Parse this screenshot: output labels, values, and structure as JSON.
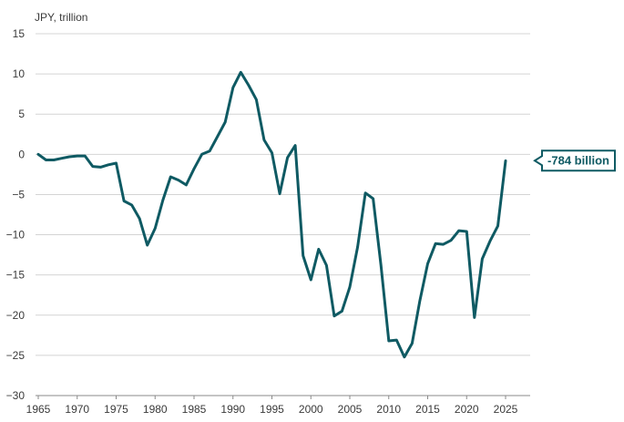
{
  "chart_data": {
    "type": "line",
    "title": "",
    "ylabel": "JPY, trillion",
    "xlabel": "",
    "xlim": [
      1965,
      2028
    ],
    "ylim": [
      -30,
      15
    ],
    "xticks": [
      1965,
      1970,
      1975,
      1980,
      1985,
      1990,
      1995,
      2000,
      2005,
      2010,
      2015,
      2020,
      2025
    ],
    "yticks": [
      15,
      10,
      5,
      0,
      -5,
      -10,
      -15,
      -20,
      -25,
      -30
    ],
    "grid": "horizontal",
    "colors": {
      "line": "#0f5a63",
      "grid": "#d4d4d4"
    },
    "series": [
      {
        "x": [
          1965,
          1966,
          1967,
          1968,
          1969,
          1970,
          1971,
          1972,
          1973,
          1974,
          1975,
          1976,
          1977,
          1978,
          1979,
          1980,
          1981,
          1982,
          1983,
          1984,
          1985,
          1986,
          1987,
          1988,
          1989,
          1990,
          1991,
          1992,
          1993,
          1994,
          1995,
          1996,
          1997,
          1998,
          1999,
          2000,
          2001,
          2002,
          2003,
          2004,
          2005,
          2006,
          2007,
          2008,
          2009,
          2010,
          2011,
          2012,
          2013,
          2014,
          2015,
          2016,
          2017,
          2018,
          2019,
          2020,
          2021,
          2022,
          2023,
          2024,
          2025
        ],
        "values": [
          0,
          -0.7,
          -0.7,
          -0.5,
          -0.3,
          -0.2,
          -0.2,
          -1.5,
          -1.6,
          -1.3,
          -1.1,
          -5.8,
          -6.3,
          -8,
          -11.3,
          -9.2,
          -5.7,
          -2.8,
          -3.2,
          -3.8,
          -1.8,
          0,
          0.4,
          2.2,
          4,
          8.3,
          10.2,
          8.6,
          6.8,
          1.8,
          0.2,
          -4.9,
          -0.4,
          1.1,
          -12.6,
          -15.6,
          -11.8,
          -13.8,
          -20.1,
          -19.5,
          -16.5,
          -11.5,
          -4.8,
          -5.5,
          -13.8,
          -23.2,
          -23.1,
          -25.2,
          -23.5,
          -18.2,
          -13.6,
          -11.1,
          -11.2,
          -10.7,
          -9.5,
          -9.6,
          -20.3,
          -13,
          -10.8,
          -8.9,
          -0.8
        ]
      }
    ],
    "callout": {
      "label": "-784 billion",
      "x": 2025,
      "y": -0.784
    }
  }
}
